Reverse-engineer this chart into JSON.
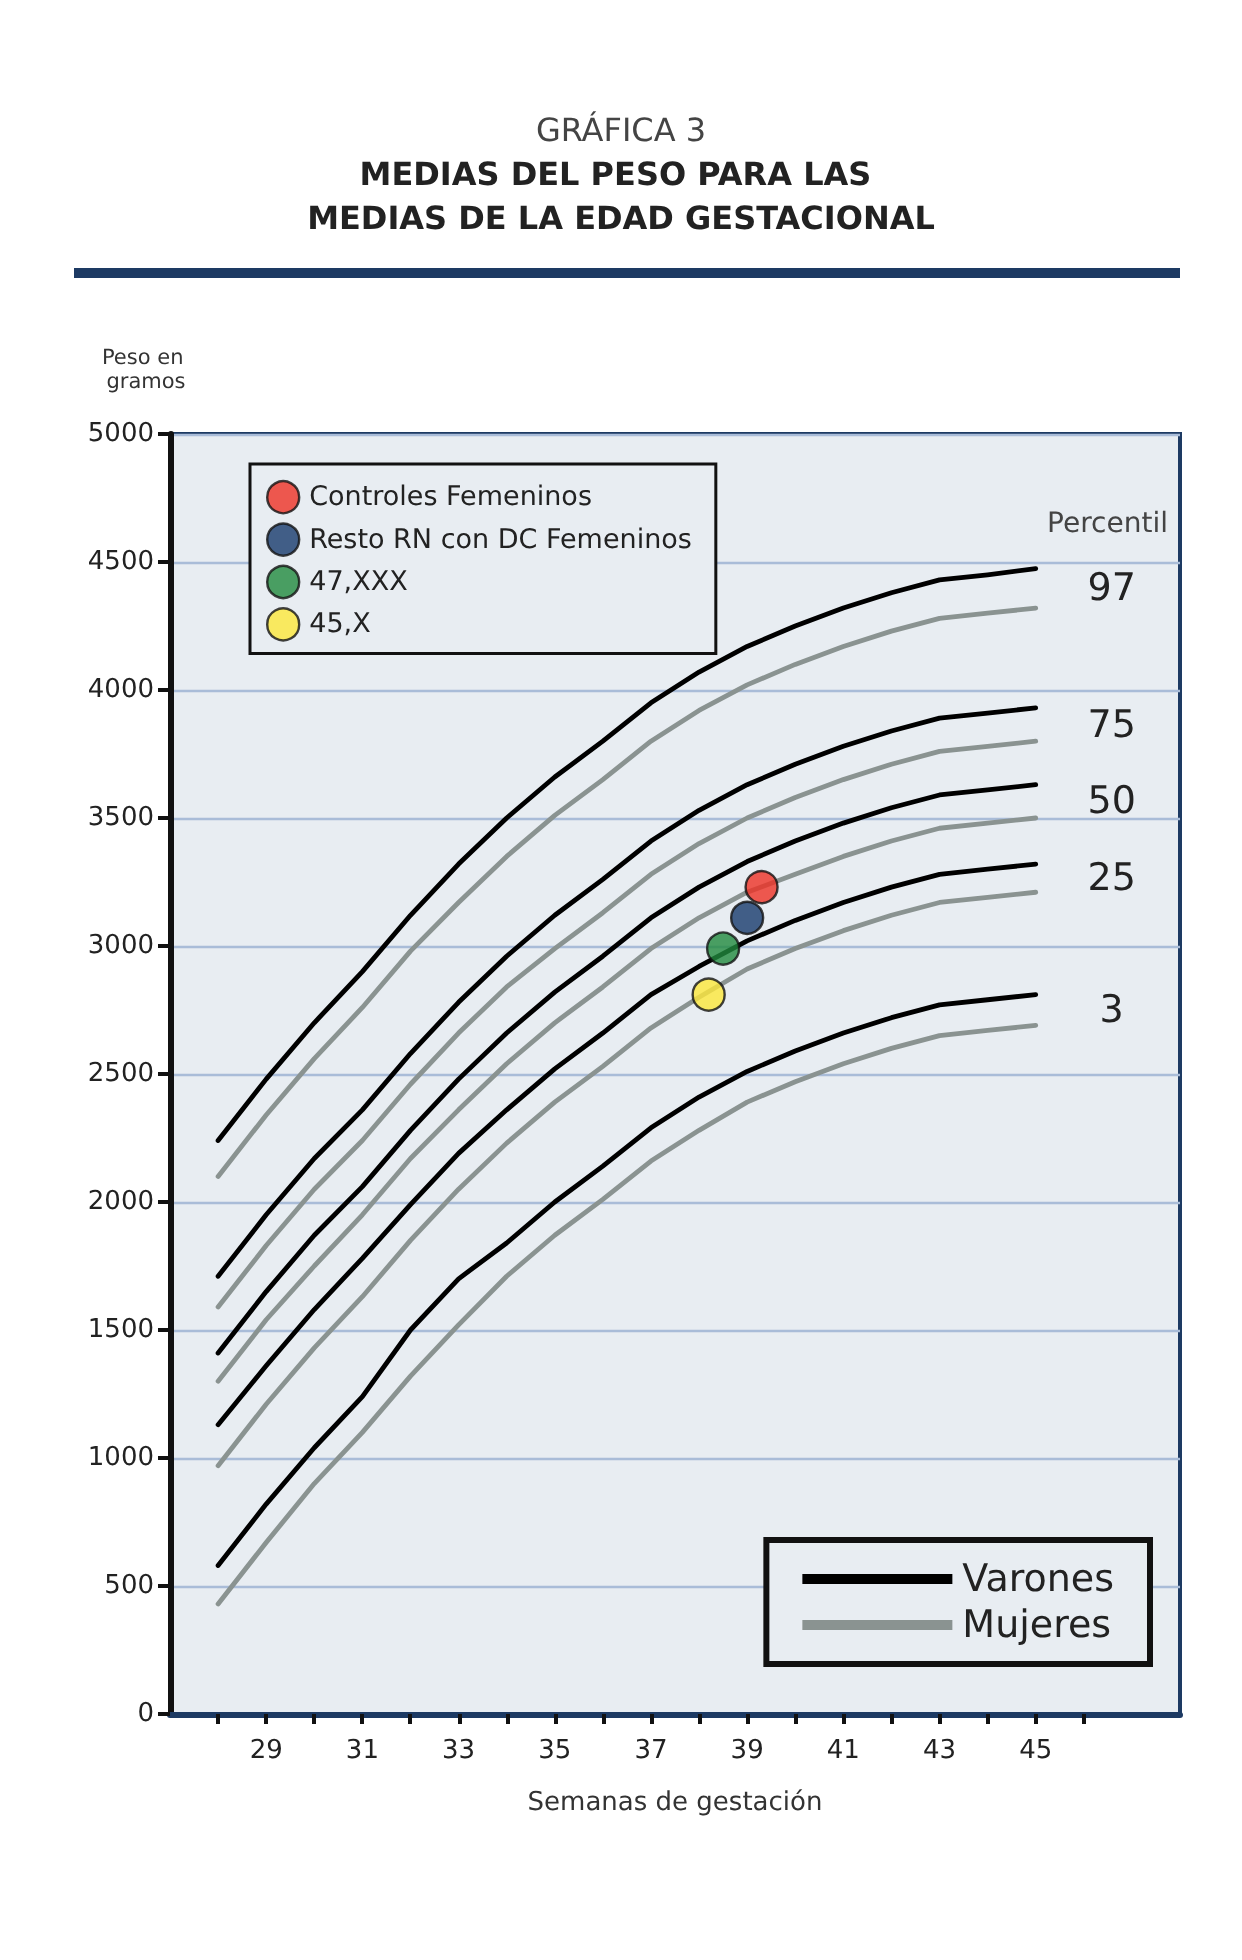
{
  "chart_data": {
    "type": "line",
    "title": "GRÁFICA 3",
    "subtitle": "MEDIAS DEL PESO PARA LAS MEDIAS DE LA EDAD GESTACIONAL",
    "xlabel": "Semanas de gestación",
    "ylabel": "Peso en gramos",
    "x": [
      28,
      29,
      30,
      31,
      32,
      33,
      34,
      35,
      36,
      37,
      38,
      39,
      40,
      41,
      42,
      43,
      44,
      45
    ],
    "series": [
      {
        "name": "Varones",
        "color": "#000000",
        "values": [
          2240,
          2480,
          2700,
          2900,
          3120,
          3320,
          3500,
          3660,
          3800,
          3950,
          4070,
          4170,
          4250,
          4320,
          4380,
          4430,
          4450,
          4474
        ]
      },
      {
        "name": "Mujeres",
        "color": "#8a9391",
        "values": [
          2100,
          2340,
          2560,
          2760,
          2980,
          3170,
          3350,
          3510,
          3650,
          3800,
          3920,
          4020,
          4100,
          4170,
          4230,
          4280,
          4300,
          4320
        ]
      },
      {
        "color": "#000000",
        "values": [
          1710,
          1950,
          2170,
          2360,
          2580,
          2780,
          2960,
          3120,
          3260,
          3410,
          3530,
          3630,
          3710,
          3780,
          3840,
          3890,
          3910,
          3930
        ]
      },
      {
        "color": "#8a9391",
        "values": [
          1590,
          1830,
          2050,
          2240,
          2460,
          2660,
          2840,
          2990,
          3130,
          3280,
          3400,
          3500,
          3580,
          3650,
          3710,
          3760,
          3780,
          3800
        ]
      },
      {
        "color": "#000000",
        "values": [
          1410,
          1650,
          1870,
          2060,
          2280,
          2480,
          2660,
          2820,
          2960,
          3110,
          3230,
          3330,
          3410,
          3480,
          3540,
          3590,
          3610,
          3630
        ]
      },
      {
        "color": "#8a9391",
        "values": [
          1300,
          1540,
          1750,
          1950,
          2170,
          2360,
          2540,
          2700,
          2840,
          2990,
          3110,
          3210,
          3280,
          3350,
          3410,
          3460,
          3480,
          3500
        ]
      },
      {
        "color": "#000000",
        "values": [
          1130,
          1360,
          1580,
          1780,
          1990,
          2190,
          2360,
          2520,
          2660,
          2810,
          2920,
          3020,
          3100,
          3170,
          3230,
          3280,
          3300,
          3320
        ]
      },
      {
        "color": "#8a9391",
        "values": [
          970,
          1210,
          1430,
          1630,
          1850,
          2050,
          2230,
          2390,
          2530,
          2680,
          2800,
          2910,
          2990,
          3060,
          3120,
          3170,
          3190,
          3210
        ]
      },
      {
        "color": "#000000",
        "values": [
          580,
          820,
          1040,
          1240,
          1500,
          1700,
          1840,
          2000,
          2140,
          2290,
          2410,
          2510,
          2590,
          2660,
          2720,
          2770,
          2790,
          2810
        ]
      },
      {
        "color": "#8a9391",
        "values": [
          430,
          670,
          900,
          1100,
          1320,
          1520,
          1710,
          1870,
          2010,
          2160,
          2280,
          2390,
          2470,
          2540,
          2600,
          2650,
          2670,
          2690
        ]
      },
      {
        "type": "scatter",
        "name": "Controles Femeninos",
        "color": "#ee3124",
        "x": [
          39.3
        ],
        "values": [
          3230
        ]
      },
      {
        "type": "scatter",
        "name": "Resto RN con DC Femeninos",
        "color": "#173a6b",
        "x": [
          39.0
        ],
        "values": [
          3110
        ]
      },
      {
        "type": "scatter",
        "name": "47,XXX",
        "color": "#218a3d",
        "x": [
          38.5
        ],
        "values": [
          2990
        ]
      },
      {
        "type": "scatter",
        "name": "45,X",
        "color": "#fde73a",
        "x": [
          38.2
        ],
        "values": [
          2810
        ]
      }
    ],
    "annotations": [
      "Percentil",
      "97",
      "75",
      "50",
      "25",
      "3"
    ],
    "xlim": [
      27,
      48
    ],
    "xticks": [
      {
        "value": 28,
        "label": null
      },
      29,
      {
        "value": 30,
        "label": null
      },
      31,
      {
        "value": 32,
        "label": null
      },
      33,
      {
        "value": 34,
        "label": null
      },
      35,
      {
        "value": 36,
        "label": null
      },
      37,
      {
        "value": 38,
        "label": null
      },
      39,
      {
        "value": 40,
        "label": null
      },
      41,
      {
        "value": 42,
        "label": null
      },
      43,
      {
        "value": 44,
        "label": null
      },
      45,
      {
        "value": 46,
        "label": null
      }
    ],
    "ylim": [
      0,
      5000
    ],
    "yticks": [
      0,
      500,
      1000,
      1500,
      2000,
      2500,
      3000,
      3500,
      4000,
      4500,
      5000
    ],
    "grid": "y",
    "legend": [
      "top left",
      "bottom right"
    ],
    "line_style": "solid"
  }
}
